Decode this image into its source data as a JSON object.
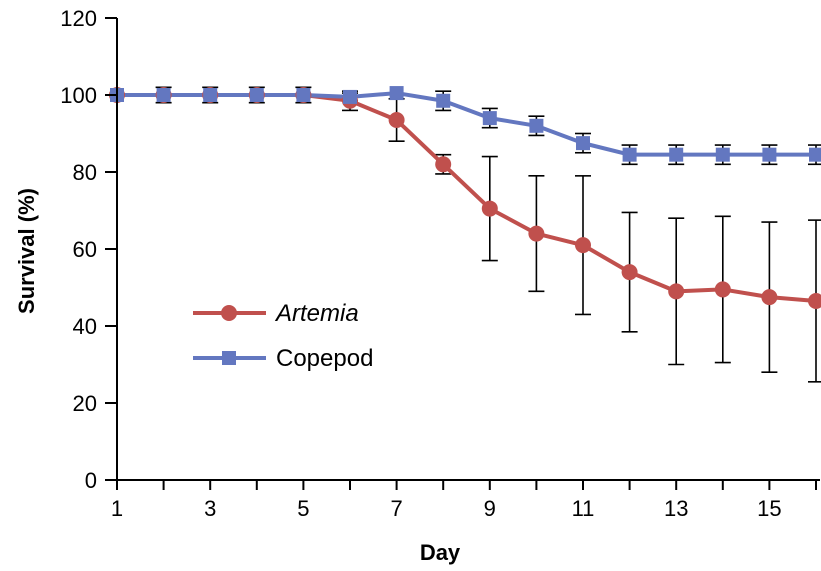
{
  "chart_data": {
    "type": "line",
    "title": "",
    "xlabel": "Day",
    "ylabel": "Survival (%)",
    "xlim": [
      1,
      16
    ],
    "ylim": [
      0,
      120
    ],
    "x_ticks": [
      1,
      3,
      5,
      7,
      9,
      11,
      13,
      15
    ],
    "x_tick_labels": [
      "1",
      "3",
      "5",
      "7",
      "9",
      "11",
      "13",
      "15"
    ],
    "y_ticks": [
      0,
      20,
      40,
      60,
      80,
      100,
      120
    ],
    "y_tick_labels": [
      "0",
      "20",
      "40",
      "60",
      "80",
      "100",
      "120"
    ],
    "grid": false,
    "legend_position": "center-left",
    "x": [
      1,
      2,
      3,
      4,
      5,
      6,
      7,
      8,
      9,
      10,
      11,
      12,
      13,
      14,
      15,
      16
    ],
    "series": [
      {
        "name": "Artemia",
        "italic": true,
        "color": "#c0504d",
        "marker": "circle",
        "values": [
          100,
          100,
          100,
          100,
          100,
          98.5,
          93.5,
          82,
          70.5,
          64,
          61,
          54,
          49,
          49.5,
          47.5,
          46.5
        ],
        "error": [
          0,
          2,
          2,
          2,
          2,
          2.5,
          5.5,
          2.5,
          13.5,
          15,
          18,
          15.5,
          19,
          19,
          19.5,
          21
        ]
      },
      {
        "name": "Copepod",
        "italic": false,
        "color": "#6377c0",
        "marker": "square",
        "values": [
          100,
          100,
          100,
          100,
          100,
          99.5,
          100.5,
          98.5,
          94,
          92,
          87.5,
          84.5,
          84.5,
          84.5,
          84.5,
          84.5
        ],
        "error": [
          0,
          0,
          0,
          0,
          0,
          1,
          0,
          2.5,
          2.5,
          2.5,
          2.5,
          2.5,
          2.5,
          2.5,
          2.5,
          2.5
        ]
      }
    ]
  }
}
